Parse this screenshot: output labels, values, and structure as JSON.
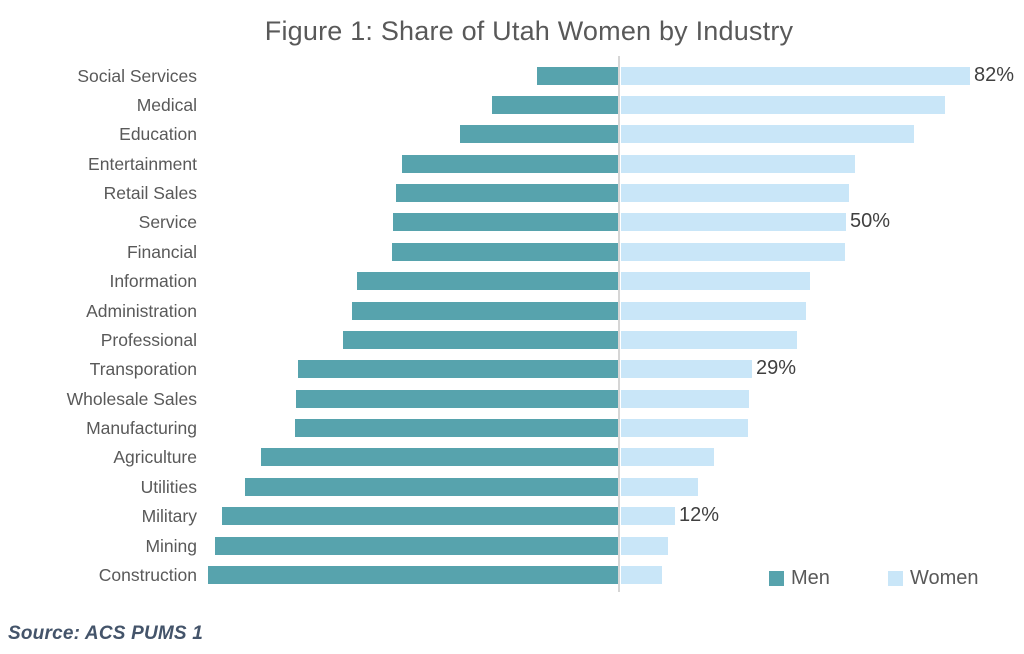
{
  "title": "Figure 1: Share of Utah Women by Industry",
  "source_note": "Source: ACS PUMS 1",
  "legend": {
    "men_label": "Men",
    "women_label": "Women",
    "position": "bottom-right"
  },
  "colors": {
    "men": "#57a3ad",
    "women": "#c9e6f8",
    "axis_line": "#d6d6d6",
    "title_text": "#595959",
    "category_text": "#595959",
    "value_label_text": "#404040",
    "source_text": "#44546a"
  },
  "chart_data": {
    "type": "bar",
    "orientation": "horizontal-diverging",
    "title": "Figure 1: Share of Utah Women by Industry",
    "xlabel": "",
    "ylabel": "",
    "axis": "hidden, single vertical gridline at 0 (men plotted left, women plotted right)",
    "xlim": [
      -100,
      78
    ],
    "grid": false,
    "legend_position": "bottom-right",
    "units": "percent share of industry workforce",
    "categories": [
      "Social Services",
      "Medical",
      "Education",
      "Entertainment",
      "Retail Sales",
      "Service",
      "Financial",
      "Information",
      "Administration",
      "Professional",
      "Transporation",
      "Wholesale Sales",
      "Manufacturing",
      "Agriculture",
      "Utilities",
      "Military",
      "Mining",
      "Construction"
    ],
    "series": [
      {
        "name": "Men",
        "values": [
          18,
          28,
          35,
          48,
          49.3,
          50,
          50.2,
          58,
          59,
          61,
          71,
          71.5,
          71.7,
          79.3,
          82.8,
          88,
          89.5,
          91
        ]
      },
      {
        "name": "Women",
        "values": [
          82,
          72,
          65,
          52,
          50.7,
          50,
          49.8,
          42,
          41,
          39,
          29,
          28.5,
          28.3,
          20.7,
          17.2,
          12,
          10.5,
          9
        ]
      }
    ],
    "data_labels": [
      {
        "category": "Social Services",
        "text": "82%"
      },
      {
        "category": "Service",
        "text": "50%"
      },
      {
        "category": "Transporation",
        "text": "29%"
      },
      {
        "category": "Military",
        "text": "12%"
      }
    ],
    "note": "Women bar for Social Services is clipped at the right plot edge"
  }
}
